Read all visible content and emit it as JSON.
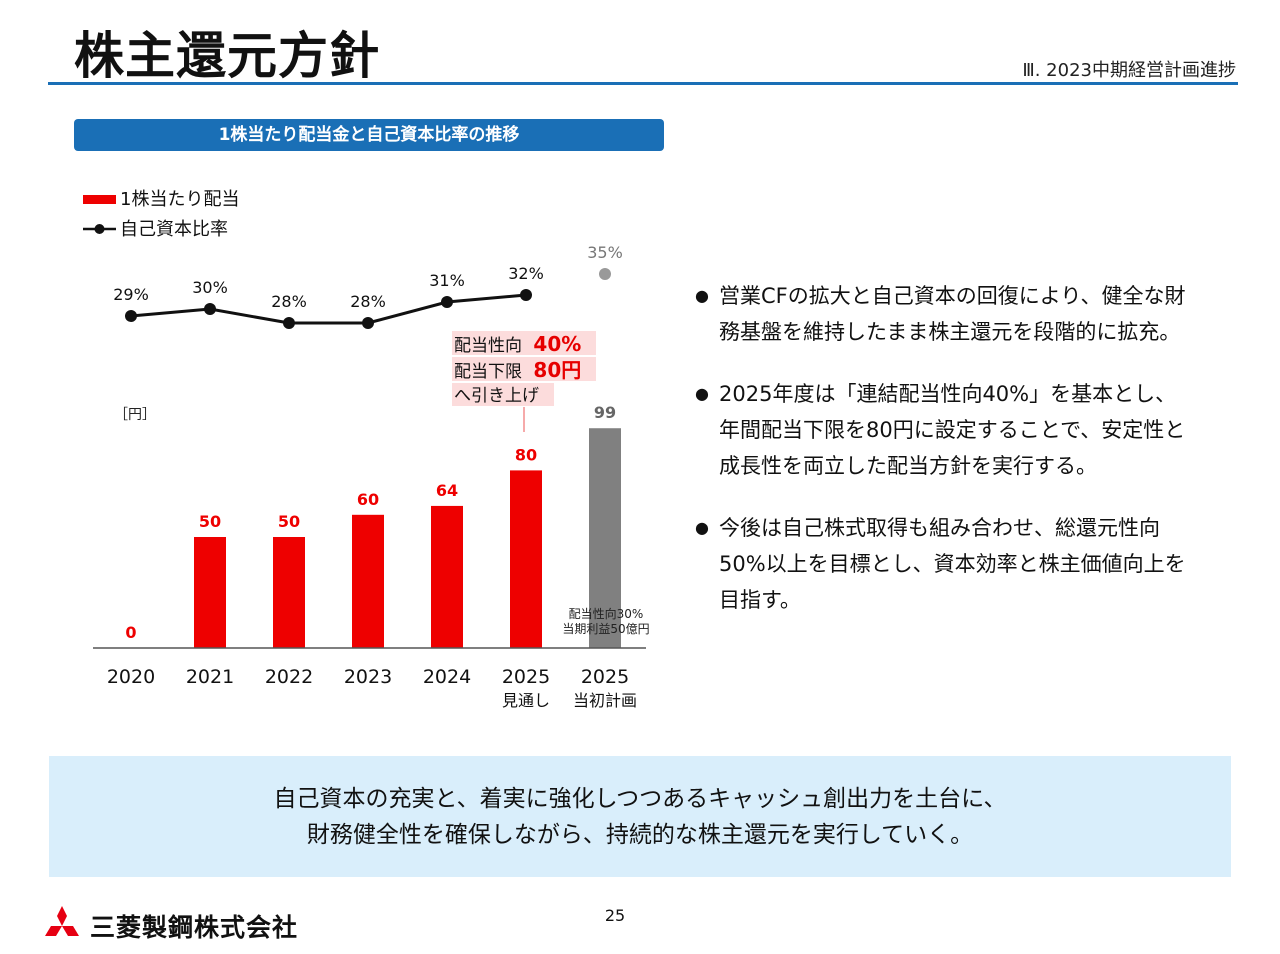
{
  "page": {
    "title": "株主還元方針",
    "section": "Ⅲ. 2023中期経営計画進捗",
    "page_number": "25",
    "company": "三菱製鋼株式会社"
  },
  "chart_header": "1株当たり配当金と自己資本比率の推移",
  "legend": {
    "bar": "1株当たり配当",
    "line": "自己資本比率"
  },
  "colors": {
    "accent_blue": "#1a6fb6",
    "bar_red": "#ee0000",
    "bar_gray": "#808080",
    "line_black": "#111111",
    "callout_bg": "#fcdcdc",
    "summary_bg": "#d9eefb"
  },
  "chart_data": {
    "type": "bar",
    "unit_label": "［円］",
    "categories": [
      {
        "year": "2020",
        "sub": ""
      },
      {
        "year": "2021",
        "sub": ""
      },
      {
        "year": "2022",
        "sub": ""
      },
      {
        "year": "2023",
        "sub": ""
      },
      {
        "year": "2024",
        "sub": ""
      },
      {
        "year": "2025",
        "sub": "見通し"
      },
      {
        "year": "2025",
        "sub": "当初計画"
      }
    ],
    "dividend": {
      "name": "1株当たり配当",
      "values": [
        0,
        50,
        50,
        60,
        64,
        80,
        99
      ],
      "labels": [
        "0",
        "50",
        "50",
        "60",
        "64",
        "80",
        "99"
      ],
      "plan_index": 6
    },
    "equity_ratio": {
      "name": "自己資本比率",
      "values": [
        29,
        30,
        28,
        28,
        31,
        32,
        35
      ],
      "labels": [
        "29%",
        "30%",
        "28%",
        "28%",
        "31%",
        "32%",
        "35%"
      ],
      "plan_index": 6
    },
    "callout": {
      "line1_text": "配当性向",
      "line1_value": "40%",
      "line2_text": "配当下限",
      "line2_value": "80円",
      "line3_text": "へ引き上げ"
    },
    "plan_note": [
      "配当性向30%",
      "当期利益50億円"
    ]
  },
  "bullets": [
    [
      "営業CFの拡大と自己資本の回復により、健全な財",
      "務基盤を維持したまま株主還元を段階的に拡充。"
    ],
    [
      "2025年度は「連結配当性向40%」を基本とし、",
      "年間配当下限を80円に設定することで、安定性と",
      "成長性を両立した配当方針を実行する。"
    ],
    [
      "今後は自己株式取得も組み合わせ、総還元性向",
      "50%以上を目標とし、資本効率と株主価値向上を",
      "目指す。"
    ]
  ],
  "summary": [
    "自己資本の充実と、着実に強化しつつあるキャッシュ創出力を土台に、",
    "財務健全性を確保しながら、持続的な株主還元を実行していく。"
  ]
}
